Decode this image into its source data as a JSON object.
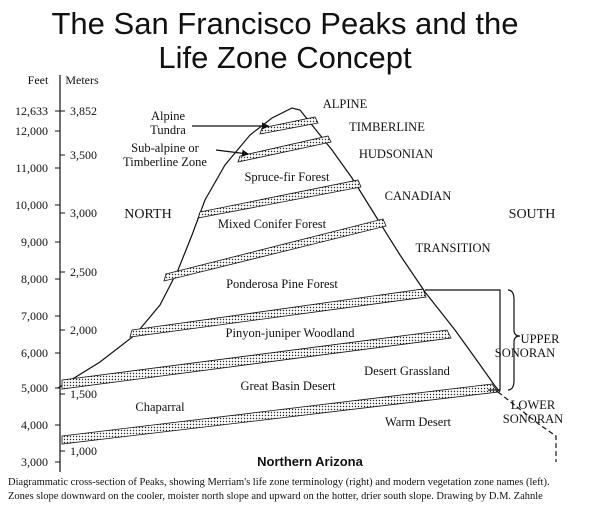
{
  "title": {
    "lines": [
      "The San Francisco Peaks and the",
      "Life Zone Concept"
    ]
  },
  "axis": {
    "feet_unit": "Feet",
    "meters_unit": "Meters",
    "feet": [
      "12,633",
      "12,000",
      "11,000",
      "10,000",
      "9,000",
      "8,000",
      "7,000",
      "6,000",
      "5,000",
      "4,000",
      "3,000"
    ],
    "meters": [
      "3,852",
      "3,500",
      "3,000",
      "2,500",
      "2,000",
      "1,500",
      "1,000"
    ]
  },
  "directions": {
    "north": "NORTH",
    "south": "SOUTH"
  },
  "vegetation_zones": {
    "alpine_tundra": [
      "Alpine",
      "Tundra"
    ],
    "subalpine": [
      "Sub-alpine or",
      "Timberline Zone"
    ],
    "spruce_fir": "Spruce-fir Forest",
    "mixed_conifer": "Mixed Conifer Forest",
    "ponderosa": "Ponderosa Pine Forest",
    "pinyon_juniper": "Pinyon-juniper Woodland",
    "great_basin": "Great Basin Desert",
    "desert_grassland": "Desert Grassland",
    "chaparral": "Chaparral",
    "warm_desert": "Warm Desert"
  },
  "merriam_zones": {
    "alpine": "ALPINE",
    "timberline": "TIMBERLINE",
    "hudsonian": "HUDSONIAN",
    "canadian": "CANADIAN",
    "transition": "TRANSITION",
    "upper_sonoran": [
      "UPPER",
      "SONORAN"
    ],
    "lower_sonoran": [
      "LOWER",
      "SONORAN"
    ]
  },
  "region": "Northern Arizona",
  "caption": [
    "Diagrammatic cross-section of Peaks, showing Merriam's life zone terminology (right) and modern vegetation zone names (left).",
    "Zones slope downward on the cooler, moister north slope and upward on the hotter, drier south slope.  Drawing by D.M. Zahnle"
  ]
}
